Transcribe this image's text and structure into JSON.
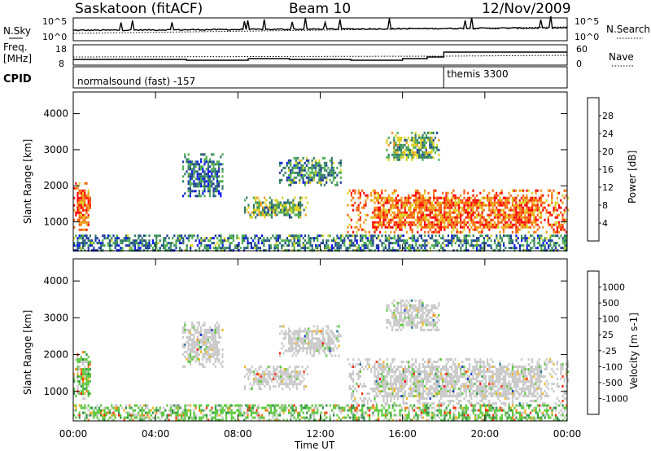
{
  "title": {
    "left": "Saskatoon (fitACF)",
    "center": "Beam 10",
    "right": "12/Nov/2009"
  },
  "nsky_panel": {
    "label": "N.Sky",
    "right_label": "N.Search",
    "left_ticks": [
      "10^5",
      "10^0"
    ],
    "right_ticks": [
      "10^5",
      "10^0"
    ]
  },
  "freq_panel": {
    "label_line1": "Freq.",
    "label_line2": "[MHz]",
    "right_label": "Nave",
    "left_ticks": [
      "18",
      "8"
    ],
    "right_ticks": [
      "60",
      "0"
    ]
  },
  "cpid_panel": {
    "label": "CPID",
    "segments": [
      {
        "start_hour": 0,
        "text": "normalsound (fast) -157"
      },
      {
        "start_hour": 18,
        "text": "themis 3300"
      }
    ]
  },
  "chart_data": [
    {
      "type": "heatmap",
      "name": "power",
      "ylabel": "Slant Range [km]",
      "xlabel": "Time UT",
      "xlim": [
        0,
        24
      ],
      "ylim": [
        200,
        4600
      ],
      "yticks": [
        1000,
        2000,
        3000,
        4000
      ],
      "colorbar": {
        "label": "Power [dB]",
        "range": [
          0,
          32
        ],
        "ticks": [
          "28",
          "24",
          "20",
          "16",
          "12",
          "8",
          "4"
        ],
        "colors": [
          "#0a12ff",
          "#1e3c9b",
          "#327a64",
          "#4cae50",
          "#dcd21e",
          "#f09614",
          "#fa5a0a",
          "#ff0000"
        ]
      },
      "echo_regions": [
        {
          "t0": 0.0,
          "t1": 0.8,
          "r0": 800,
          "r1": 2100,
          "level": 26
        },
        {
          "t0": 5.3,
          "t1": 7.3,
          "r0": 1700,
          "r1": 2900,
          "level": 9
        },
        {
          "t0": 8.3,
          "t1": 11.4,
          "r0": 1100,
          "r1": 1700,
          "level": 14
        },
        {
          "t0": 10.0,
          "t1": 13.0,
          "r0": 2000,
          "r1": 2800,
          "level": 10
        },
        {
          "t0": 13.3,
          "t1": 24.0,
          "r0": 700,
          "r1": 1900,
          "level": 25
        },
        {
          "t0": 15.2,
          "t1": 17.8,
          "r0": 2700,
          "r1": 3500,
          "level": 14
        },
        {
          "t0": 0.0,
          "t1": 24.0,
          "r0": 200,
          "r1": 650,
          "level": 10
        }
      ]
    },
    {
      "type": "heatmap",
      "name": "velocity",
      "ylabel": "Slant Range [km]",
      "xlabel": "Time UT",
      "xlim": [
        0,
        24
      ],
      "ylim": [
        200,
        4600
      ],
      "yticks": [
        1000,
        2000,
        3000,
        4000
      ],
      "colorbar": {
        "label": "Velocity [m s-1]",
        "ticks": [
          "1000",
          "500",
          "100",
          "25",
          "-25",
          "-100",
          "-500",
          "-1000"
        ],
        "colors": [
          "#1432c8",
          "#1e6e96",
          "#2d9146",
          "#5ac83c",
          "#c8c8c8",
          "#f0b41e",
          "#fa7814",
          "#ff2800",
          "#ff0000"
        ]
      },
      "echo_regions": [
        {
          "t0": 0.0,
          "t1": 0.8,
          "r0": 800,
          "r1": 2100,
          "level": 75
        },
        {
          "t0": 5.3,
          "t1": 7.3,
          "r0": 1700,
          "r1": 2900,
          "level": 0
        },
        {
          "t0": 8.3,
          "t1": 11.4,
          "r0": 1100,
          "r1": 1700,
          "level": 0
        },
        {
          "t0": 10.0,
          "t1": 13.0,
          "r0": 2000,
          "r1": 2800,
          "level": 0
        },
        {
          "t0": 13.3,
          "t1": 24.0,
          "r0": 700,
          "r1": 1900,
          "level": 0
        },
        {
          "t0": 15.2,
          "t1": 17.8,
          "r0": 2700,
          "r1": 3500,
          "level": 0
        },
        {
          "t0": 0.0,
          "t1": 24.0,
          "r0": 200,
          "r1": 650,
          "level": 50
        }
      ]
    }
  ],
  "x_axis": {
    "label": "Time UT",
    "ticks": [
      "00:00",
      "04:00",
      "08:00",
      "12:00",
      "16:00",
      "20:00",
      "00:00"
    ]
  }
}
